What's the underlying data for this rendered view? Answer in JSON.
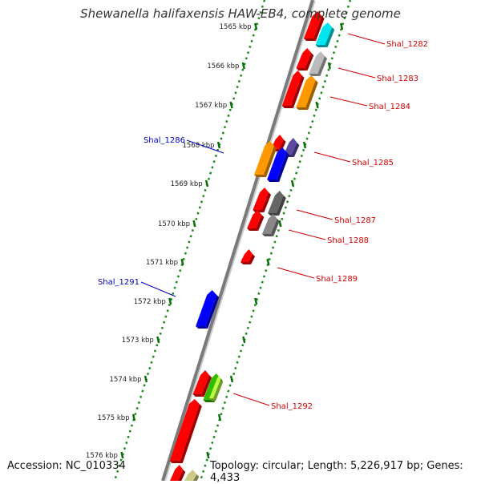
{
  "title": "Shewanella halifaxensis HAW-EB4, complete genome",
  "accession": "Accession: NC_010334",
  "summary": "Topology: circular; Length: 5,226,917 bp; Genes: 4,433",
  "colors": {
    "backbone": "#7a7a7a",
    "tick_dots": "#1a8a1a",
    "forward_label": "#d00000",
    "reverse_label": "#0000bb"
  },
  "ticks": [
    {
      "label": "1565 kbp"
    },
    {
      "label": "1566 kbp"
    },
    {
      "label": "1567 kbp"
    },
    {
      "label": "1568 kbp"
    },
    {
      "label": "1569 kbp"
    },
    {
      "label": "1570 kbp"
    },
    {
      "label": "1571 kbp"
    },
    {
      "label": "1572 kbp"
    },
    {
      "label": "1573 kbp"
    },
    {
      "label": "1574 kbp"
    },
    {
      "label": "1575 kbp"
    },
    {
      "label": "1576 kbp"
    }
  ],
  "genes": [
    {
      "color": "#ff0000"
    },
    {
      "color": "#00e5ee"
    },
    {
      "color": "#ff0000"
    },
    {
      "color": "#bbbbbb"
    },
    {
      "color": "#ff0000"
    },
    {
      "color": "#ff9900"
    },
    {
      "color": "#ff0000"
    },
    {
      "color": "#5a4aa0"
    },
    {
      "color": "#ff9900"
    },
    {
      "color": "#0000ff"
    },
    {
      "color": "#ff0000"
    },
    {
      "color": "#666666"
    },
    {
      "color": "#ff0000"
    },
    {
      "color": "#888888"
    },
    {
      "color": "#ff0000"
    },
    {
      "color": "#0000ff"
    },
    {
      "color": "#ff0000"
    },
    {
      "color": "#33bb00"
    },
    {
      "color": "#bbff44"
    },
    {
      "color": "#ff0000"
    },
    {
      "color": "#ff0000"
    },
    {
      "color": "#cccc88"
    }
  ],
  "labels": [
    {
      "text": "Shal_1282",
      "strand": "forward"
    },
    {
      "text": "Shal_1283",
      "strand": "forward"
    },
    {
      "text": "Shal_1284",
      "strand": "forward"
    },
    {
      "text": "Shal_1285",
      "strand": "forward"
    },
    {
      "text": "Shal_1286",
      "strand": "reverse"
    },
    {
      "text": "Shal_1287",
      "strand": "forward"
    },
    {
      "text": "Shal_1288",
      "strand": "forward"
    },
    {
      "text": "Shal_1289",
      "strand": "forward"
    },
    {
      "text": "Shal_1291",
      "strand": "reverse"
    },
    {
      "text": "Shal_1292",
      "strand": "forward"
    }
  ]
}
